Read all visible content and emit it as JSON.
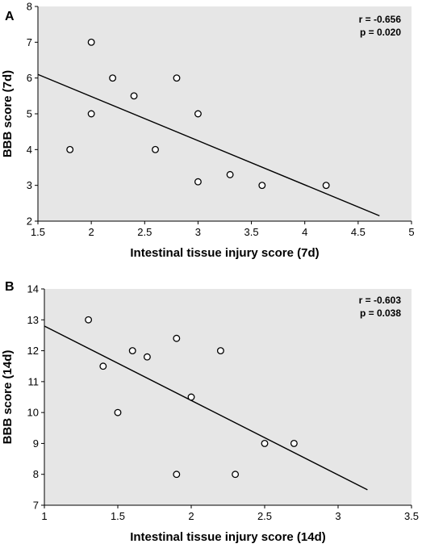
{
  "chart_data": [
    {
      "type": "scatter",
      "panel_label": "A",
      "xlabel": "Intestinal tissue injury score (7d)",
      "ylabel": "BBB score (7d)",
      "xlim": [
        1.5,
        5
      ],
      "ylim": [
        2,
        8
      ],
      "xticks": [
        "1.5",
        "2",
        "2.5",
        "3",
        "3.5",
        "4",
        "4.5",
        "5"
      ],
      "yticks": [
        "2",
        "3",
        "4",
        "5",
        "6",
        "7",
        "8"
      ],
      "points": [
        {
          "x": 1.8,
          "y": 4
        },
        {
          "x": 2.0,
          "y": 7
        },
        {
          "x": 2.0,
          "y": 5
        },
        {
          "x": 2.2,
          "y": 6
        },
        {
          "x": 2.4,
          "y": 5.5
        },
        {
          "x": 2.6,
          "y": 4
        },
        {
          "x": 2.8,
          "y": 6
        },
        {
          "x": 3.0,
          "y": 5
        },
        {
          "x": 3.0,
          "y": 3.1
        },
        {
          "x": 3.3,
          "y": 3.3
        },
        {
          "x": 3.6,
          "y": 3
        },
        {
          "x": 4.2,
          "y": 3
        }
      ],
      "fit_line": {
        "x1": 1.5,
        "y1": 6.1,
        "x2": 4.7,
        "y2": 2.15
      },
      "stats": [
        "r = -0.656",
        "p = 0.020"
      ],
      "grid": false,
      "background": "#e6e6e6"
    },
    {
      "type": "scatter",
      "panel_label": "B",
      "xlabel": "Intestinal tissue injury score (14d)",
      "ylabel": "BBB score (14d)",
      "xlim": [
        1,
        3.5
      ],
      "ylim": [
        7,
        14
      ],
      "xticks": [
        "1",
        "1.5",
        "2",
        "2.5",
        "3",
        "3.5"
      ],
      "yticks": [
        "7",
        "8",
        "9",
        "10",
        "11",
        "12",
        "13",
        "14"
      ],
      "points": [
        {
          "x": 1.3,
          "y": 13
        },
        {
          "x": 1.4,
          "y": 11.5
        },
        {
          "x": 1.5,
          "y": 10
        },
        {
          "x": 1.6,
          "y": 12
        },
        {
          "x": 1.7,
          "y": 11.8
        },
        {
          "x": 1.9,
          "y": 12.4
        },
        {
          "x": 1.9,
          "y": 8
        },
        {
          "x": 2.0,
          "y": 10.5
        },
        {
          "x": 2.2,
          "y": 12
        },
        {
          "x": 2.3,
          "y": 8
        },
        {
          "x": 2.5,
          "y": 9
        },
        {
          "x": 2.7,
          "y": 9
        }
      ],
      "fit_line": {
        "x1": 1.0,
        "y1": 12.8,
        "x2": 3.2,
        "y2": 7.5
      },
      "stats": [
        "r = -0.603",
        "p = 0.038"
      ],
      "grid": false,
      "background": "#e6e6e6"
    }
  ]
}
